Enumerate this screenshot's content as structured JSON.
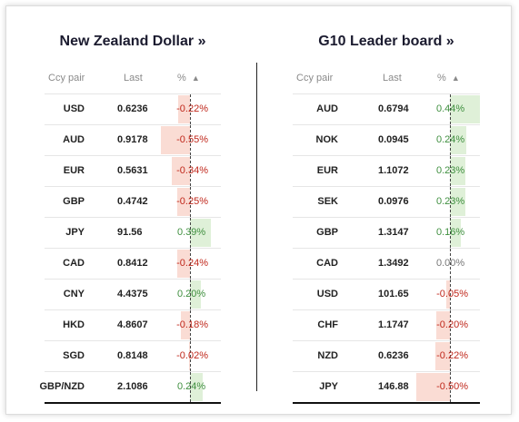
{
  "left": {
    "title": "New Zealand Dollar »",
    "headers": {
      "pair": "Ccy pair",
      "last": "Last",
      "pct": "% ",
      "sort": "▲"
    },
    "rows": [
      {
        "pair": "USD",
        "last": "0.6236",
        "pct": "-0.22%",
        "value": -0.22
      },
      {
        "pair": "AUD",
        "last": "0.9178",
        "pct": "-0.55%",
        "value": -0.55
      },
      {
        "pair": "EUR",
        "last": "0.5631",
        "pct": "-0.34%",
        "value": -0.34
      },
      {
        "pair": "GBP",
        "last": "0.4742",
        "pct": "-0.25%",
        "value": -0.25
      },
      {
        "pair": "JPY",
        "last": "91.56",
        "pct": "0.39%",
        "value": 0.39
      },
      {
        "pair": "CAD",
        "last": "0.8412",
        "pct": "-0.24%",
        "value": -0.24
      },
      {
        "pair": "CNY",
        "last": "4.4375",
        "pct": "0.20%",
        "value": 0.2
      },
      {
        "pair": "HKD",
        "last": "4.8607",
        "pct": "-0.18%",
        "value": -0.18
      },
      {
        "pair": "SGD",
        "last": "0.8148",
        "pct": "-0.02%",
        "value": -0.02
      },
      {
        "pair": "GBP/NZD",
        "last": "2.1086",
        "pct": "0.24%",
        "value": 0.24
      }
    ]
  },
  "right": {
    "title": "G10 Leader board »",
    "headers": {
      "pair": "Ccy pair",
      "last": "Last",
      "pct": "% ",
      "sort": "▲"
    },
    "rows": [
      {
        "pair": "AUD",
        "last": "0.6794",
        "pct": "0.44%",
        "value": 0.44
      },
      {
        "pair": "NOK",
        "last": "0.0945",
        "pct": "0.24%",
        "value": 0.24
      },
      {
        "pair": "EUR",
        "last": "1.1072",
        "pct": "0.23%",
        "value": 0.23
      },
      {
        "pair": "SEK",
        "last": "0.0976",
        "pct": "0.23%",
        "value": 0.23
      },
      {
        "pair": "GBP",
        "last": "1.3147",
        "pct": "0.16%",
        "value": 0.16
      },
      {
        "pair": "CAD",
        "last": "1.3492",
        "pct": "0.00%",
        "value": 0.0
      },
      {
        "pair": "USD",
        "last": "101.65",
        "pct": "-0.05%",
        "value": -0.05
      },
      {
        "pair": "CHF",
        "last": "1.1747",
        "pct": "-0.20%",
        "value": -0.2
      },
      {
        "pair": "NZD",
        "last": "0.6236",
        "pct": "-0.22%",
        "value": -0.22
      },
      {
        "pair": "JPY",
        "last": "146.88",
        "pct": "-0.50%",
        "value": -0.5
      }
    ]
  },
  "colors": {
    "negative": "#c0281c",
    "positive": "#3f8f3f",
    "neg_bar": "#fadcd4",
    "pos_bar": "#dff0d8"
  }
}
